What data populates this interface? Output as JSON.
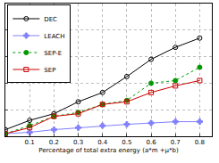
{
  "chart_data": {
    "type": "line",
    "x_label": "Percentage of total extra energy (a*m +μ*b)",
    "x": [
      0,
      0.1,
      0.2,
      0.3,
      0.4,
      0.5,
      0.6,
      0.7,
      0.8
    ],
    "series": [
      {
        "name": "DEC",
        "color": "#000000",
        "marker": "circle-open",
        "line_style": "solid",
        "values": [
          0.5,
          1.2,
          1.7,
          2.6,
          3.3,
          4.5,
          5.8,
          6.7,
          7.4
        ]
      },
      {
        "name": "LEACH",
        "color": "#8080ff",
        "marker": "cross",
        "line_style": "solid",
        "values": [
          0.2,
          0.3,
          0.5,
          0.65,
          0.8,
          0.9,
          1.0,
          1.1,
          1.1
        ]
      },
      {
        "name": "SEP-E",
        "color": "#009900",
        "marker": "circle",
        "line_style": "dotted",
        "values": [
          0.2,
          0.8,
          1.5,
          1.8,
          2.4,
          2.7,
          4.0,
          4.2,
          5.2
        ]
      },
      {
        "name": "SEP",
        "color": "#cc0000",
        "marker": "square-open",
        "line_style": "solid",
        "values": [
          0.2,
          0.65,
          1.5,
          1.7,
          2.4,
          2.6,
          3.3,
          3.8,
          4.2
        ]
      }
    ],
    "xlim": [
      0,
      0.85
    ],
    "xticks": [
      0.1,
      0.2,
      0.3,
      0.4,
      0.5,
      0.6,
      0.7,
      0.8
    ],
    "ylim": [
      0,
      10
    ],
    "yticks": [
      0,
      2,
      4,
      6,
      8,
      10
    ],
    "grid": true,
    "legend": "upper left",
    "tick_labels": "x"
  }
}
